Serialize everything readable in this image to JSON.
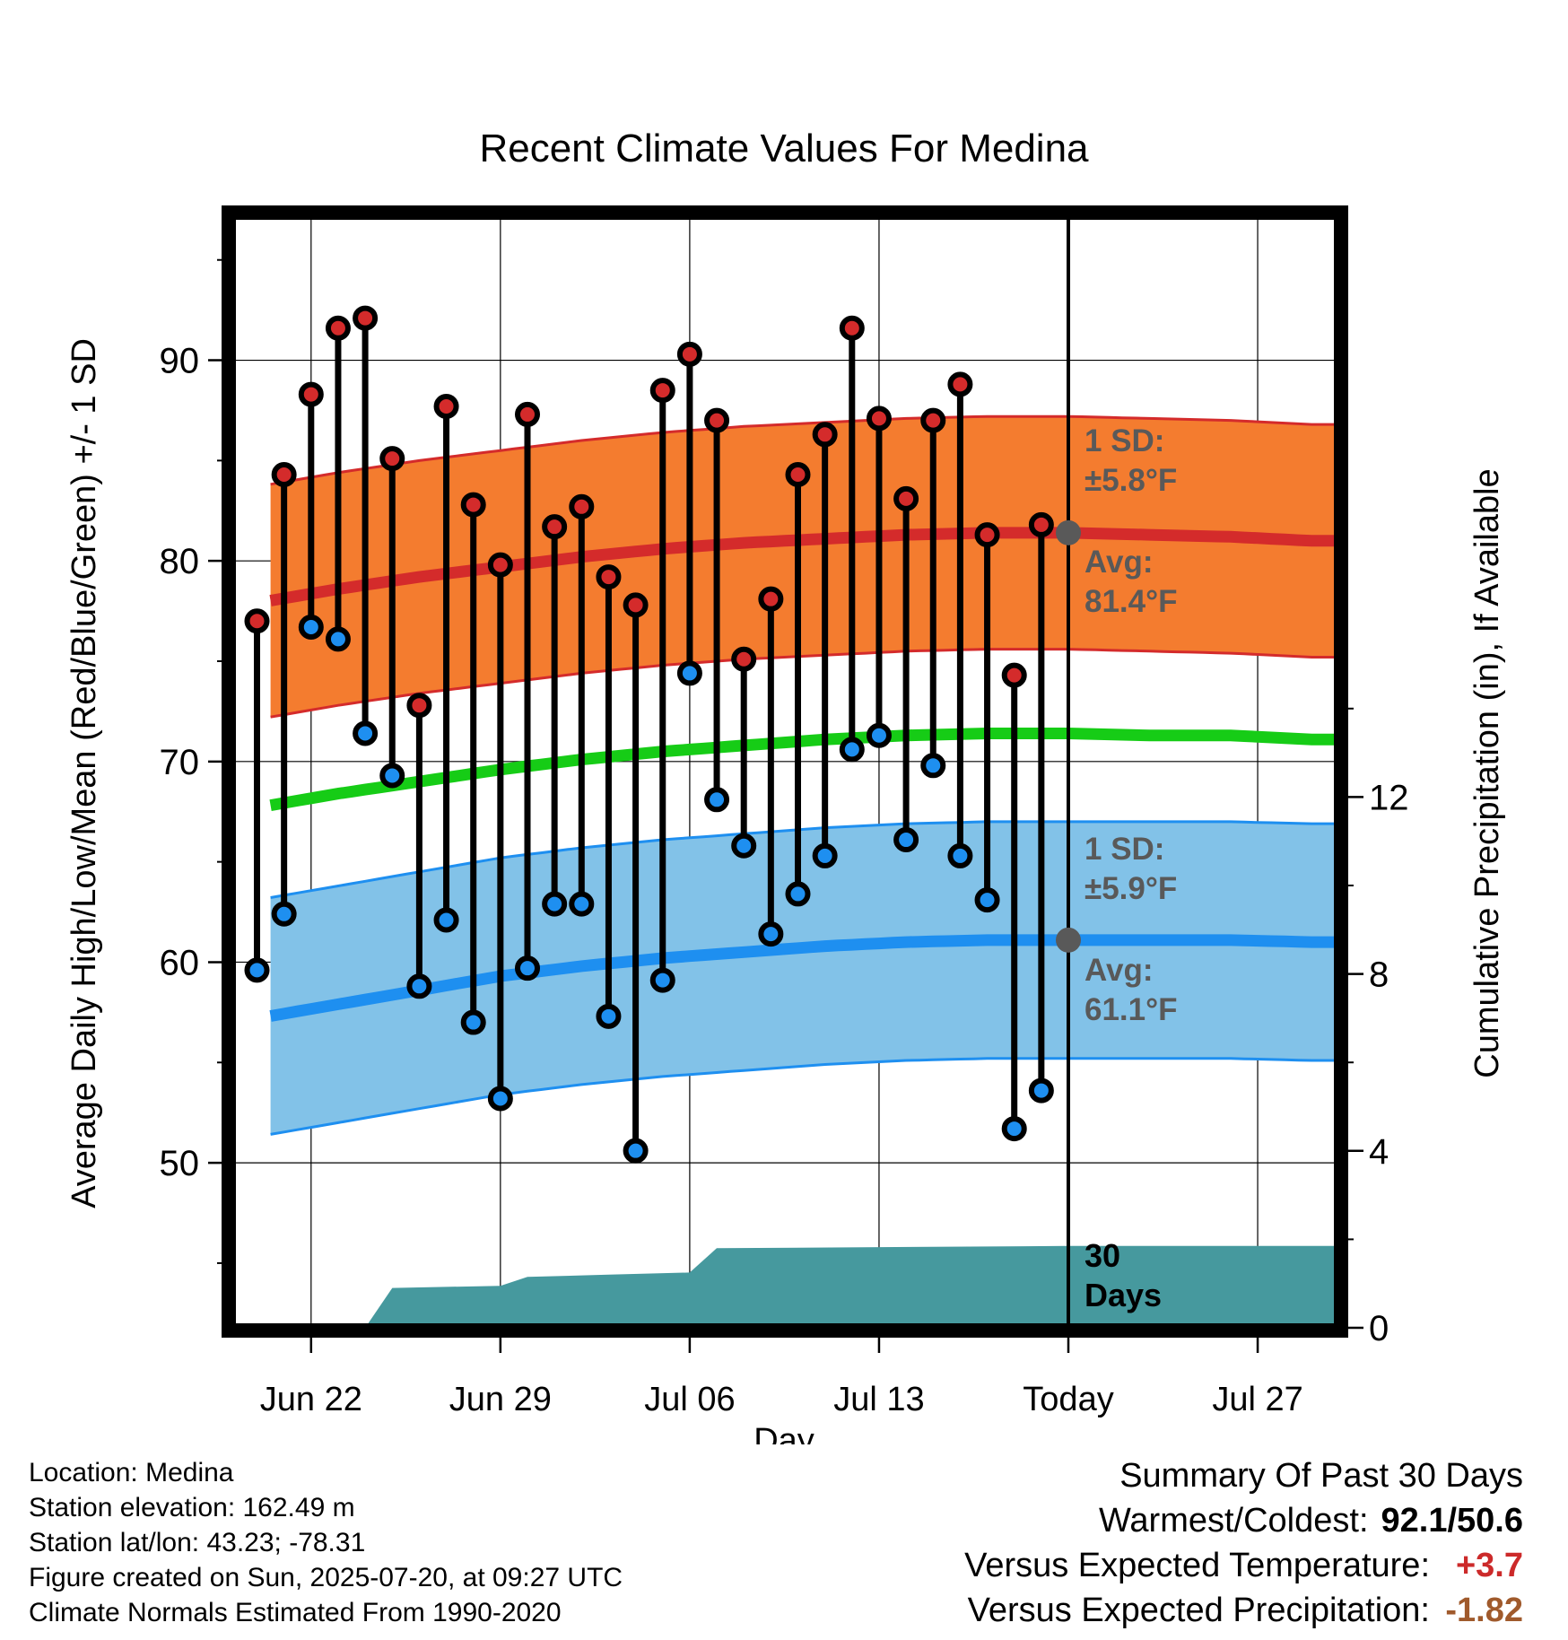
{
  "chart_data": {
    "type": "line",
    "title": "Recent Climate Values For Medina",
    "xlabel": "Day",
    "ylabel": "Average Daily High/Low/Mean (Red/Blue/Green) +/- 1 SD",
    "y2label": "Cumulative Precipitation (in), If Available",
    "ylim": [
      42,
      97
    ],
    "y2lim": [
      0,
      25
    ],
    "xlim": [
      -29.5,
      11.5
    ],
    "x_unit": "days relative to Today (Jul 20)",
    "x_ticks": [
      {
        "x": -28,
        "label": "Jun 22"
      },
      {
        "x": -21,
        "label": "Jun 29"
      },
      {
        "x": -14,
        "label": "Jul 06"
      },
      {
        "x": -7,
        "label": "Jul 13"
      },
      {
        "x": 0,
        "label": "Today"
      },
      {
        "x": 7,
        "label": "Jul 27"
      }
    ],
    "y_ticks": [
      50,
      60,
      70,
      80,
      90
    ],
    "y2_ticks": [
      0,
      4,
      8,
      12
    ],
    "grid": true,
    "daily_observations": {
      "x": [
        -30,
        -29,
        -28,
        -27,
        -26,
        -25,
        -24,
        -23,
        -22,
        -21,
        -20,
        -19,
        -18,
        -17,
        -16,
        -15,
        -14,
        -13,
        -12,
        -11,
        -10,
        -9,
        -8,
        -7,
        -6,
        -5,
        -4,
        -3,
        -2,
        -1
      ],
      "high": [
        77.0,
        84.3,
        88.3,
        91.6,
        92.1,
        85.1,
        72.8,
        87.7,
        82.8,
        79.8,
        87.3,
        81.7,
        82.7,
        79.2,
        77.8,
        88.5,
        90.3,
        87.0,
        75.1,
        78.1,
        84.3,
        86.3,
        91.6,
        87.1,
        83.1,
        87.0,
        88.8,
        81.3,
        74.3,
        81.8
      ],
      "low": [
        59.6,
        62.4,
        76.7,
        76.1,
        71.4,
        69.3,
        58.8,
        62.1,
        57.0,
        53.2,
        59.7,
        62.9,
        62.9,
        57.3,
        50.6,
        59.1,
        74.4,
        68.1,
        65.8,
        61.4,
        63.4,
        65.3,
        70.6,
        71.3,
        66.1,
        69.8,
        65.3,
        63.1,
        51.7,
        53.6
      ]
    },
    "normals": {
      "x": [
        -30,
        -27,
        -24,
        -21,
        -18,
        -15,
        -12,
        -9,
        -6,
        -3,
        0,
        3,
        6,
        9
      ],
      "avg_high": [
        77.9,
        78.6,
        79.2,
        79.7,
        80.2,
        80.6,
        80.9,
        81.1,
        81.3,
        81.4,
        81.4,
        81.3,
        81.2,
        81.0
      ],
      "avg_low": [
        57.2,
        57.9,
        58.6,
        59.3,
        59.8,
        60.2,
        60.5,
        60.8,
        61.0,
        61.1,
        61.1,
        61.1,
        61.1,
        61.0
      ],
      "avg_mean": [
        67.7,
        68.4,
        69.0,
        69.6,
        70.1,
        70.5,
        70.8,
        71.1,
        71.3,
        71.4,
        71.4,
        71.3,
        71.3,
        71.1
      ],
      "high_sd": 5.8,
      "low_sd": 5.9
    },
    "cumulative_precip": {
      "x": [
        -30,
        -26,
        -25,
        -21,
        -20,
        -17,
        -14,
        -13,
        0,
        11.5
      ],
      "values": [
        0,
        0,
        0.9,
        0.95,
        1.15,
        1.2,
        1.25,
        1.8,
        1.85,
        1.85
      ]
    },
    "colors": {
      "high": "#d42b2b",
      "high_band": "#f47c2f",
      "low": "#1e8ff0",
      "low_band": "#82c2e8",
      "mean": "#16cc16",
      "precip": "#46999e",
      "marker_gray": "#595959"
    },
    "annotations": {
      "high_sd_line1": "1 SD:",
      "high_sd_line2": "±5.8°F",
      "high_avg_line1": "Avg:",
      "high_avg_line2": "81.4°F",
      "low_sd_line1": "1 SD:",
      "low_sd_line2": "±5.9°F",
      "low_avg_line1": "Avg:",
      "low_avg_line2": "61.1°F",
      "window_line1": "30",
      "window_line2": "Days"
    }
  },
  "info": {
    "location": "Location: Medina",
    "elevation": "Station elevation: 162.49 m",
    "latlon": "Station lat/lon: 43.23; -78.31",
    "created": "Figure created on Sun, 2025-07-20, at 09:27 UTC",
    "normals": "Climate Normals Estimated From 1990-2020"
  },
  "summary": {
    "title": "Summary Of Past 30 Days",
    "warmest_label": "Warmest/Coldest:",
    "warmest_value": "92.1/50.6",
    "temp_label": "Versus Expected Temperature:",
    "temp_value": "+3.7",
    "temp_color": "#cc2a2a",
    "precip_label": "Versus Expected Precipitation:",
    "precip_value": "-1.82",
    "precip_color": "#a05a2c"
  }
}
